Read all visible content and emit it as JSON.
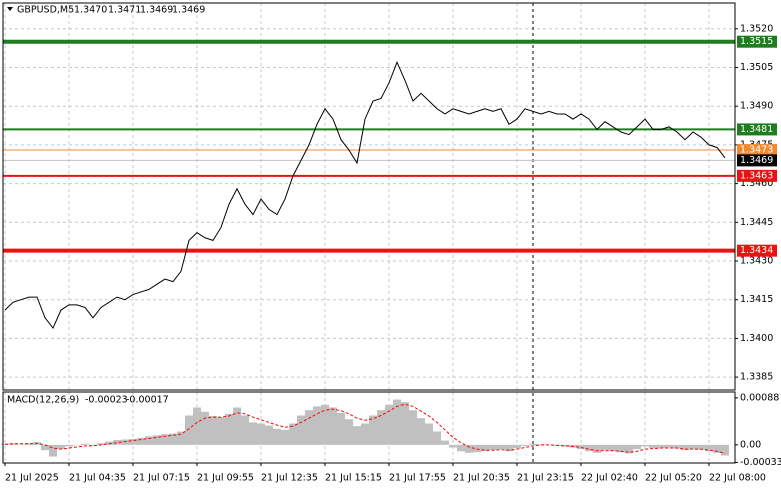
{
  "chart_data": {
    "type": "line",
    "title": "GBPUSD,M5",
    "ohlc": [
      "1.3470",
      "1.3471",
      "1.3469",
      "1.3469"
    ],
    "categories": [
      "21 Jul 2025",
      null,
      null,
      null,
      null,
      null,
      null,
      null,
      "21 Jul 04:35",
      null,
      null,
      null,
      null,
      null,
      null,
      null,
      "21 Jul 07:15",
      null,
      null,
      null,
      null,
      null,
      null,
      null,
      "21 Jul 09:55",
      null,
      null,
      null,
      null,
      null,
      null,
      null,
      "21 Jul 12:35",
      null,
      null,
      null,
      null,
      null,
      null,
      null,
      "21 Jul 15:15",
      null,
      null,
      null,
      null,
      null,
      null,
      null,
      "21 Jul 17:55",
      null,
      null,
      null,
      null,
      null,
      null,
      null,
      "21 Jul 20:35",
      null,
      null,
      null,
      null,
      null,
      null,
      null,
      "21 Jul 23:15",
      null,
      null,
      null,
      null,
      null,
      null,
      null,
      "22 Jul 02:40",
      null,
      null,
      null,
      null,
      null,
      null,
      null,
      "22 Jul 05:20",
      null,
      null,
      null,
      null,
      null,
      null,
      null,
      "22 Jul 08:00",
      null,
      null
    ],
    "values": [
      1.3411,
      1.3414,
      1.3415,
      1.3416,
      1.3416,
      1.3408,
      1.3404,
      1.3411,
      1.3413,
      1.3413,
      1.3412,
      1.3408,
      1.3412,
      1.3414,
      1.3416,
      1.3415,
      1.3417,
      1.3418,
      1.3419,
      1.3421,
      1.3423,
      1.3422,
      1.3426,
      1.3438,
      1.3441,
      1.3439,
      1.3438,
      1.3443,
      1.3452,
      1.3458,
      1.3452,
      1.3448,
      1.3454,
      1.345,
      1.3448,
      1.3454,
      1.3463,
      1.3469,
      1.3475,
      1.3483,
      1.3489,
      1.3485,
      1.3477,
      1.3473,
      1.3468,
      1.3485,
      1.3492,
      1.3493,
      1.3499,
      1.3507,
      1.35,
      1.3492,
      1.3495,
      1.3492,
      1.3489,
      1.3487,
      1.3489,
      1.3488,
      1.3487,
      1.3488,
      1.3489,
      1.3488,
      1.3489,
      1.3483,
      1.3485,
      1.3489,
      1.3488,
      1.3487,
      1.3488,
      1.3487,
      1.3487,
      1.3485,
      1.3487,
      1.3485,
      1.3481,
      1.3484,
      1.3482,
      1.348,
      1.3479,
      1.3482,
      1.3485,
      1.3481,
      1.3481,
      1.3482,
      1.348,
      1.3477,
      1.348,
      1.3478,
      1.3475,
      1.3474,
      1.347
    ],
    "color": "#000000",
    "ylim": [
      1.338,
      1.353
    ],
    "yticks": [
      {
        "value": 1.352,
        "label": "1.3520"
      },
      1.3505,
      {
        "value": 1.349,
        "label": "1.3490"
      },
      1.3475,
      {
        "value": 1.346,
        "label": "1.3460"
      },
      1.3445,
      {
        "value": 1.343,
        "label": "1.3430"
      },
      1.3415,
      {
        "value": 1.34,
        "label": "1.3400"
      },
      1.3385
    ],
    "grid": true,
    "levels": [
      {
        "value": 1.3515,
        "color": "#1e7d1e"
      },
      {
        "value": 1.3481,
        "color": "#1e7d1e"
      },
      {
        "value": 1.3473,
        "color": "#f08a30"
      },
      {
        "value": 1.3469,
        "color": "#000000"
      },
      {
        "value": 1.3463,
        "color": "#ee1111"
      },
      {
        "value": 1.3434,
        "color": "#ee1111"
      }
    ],
    "macd": {
      "title": "MACD(12,26,9)",
      "readout": [
        -0.00023,
        -0.00017
      ],
      "histogram": [
        2e-05,
        3e-05,
        1e-05,
        3e-05,
        5e-05,
        -0.0001,
        -0.00022,
        -8e-05,
        -3e-05,
        0,
        2e-05,
        -2e-05,
        3e-05,
        6e-05,
        9e-05,
        0.0001,
        0.00011,
        0.00013,
        0.00016,
        0.00018,
        0.0002,
        0.00021,
        0.00025,
        0.00055,
        0.0007,
        0.00062,
        0.00054,
        0.00052,
        0.00058,
        0.0007,
        0.00055,
        0.00042,
        0.0004,
        0.00036,
        0.0003,
        0.00028,
        0.0004,
        0.00055,
        0.00065,
        0.00072,
        0.00075,
        0.0007,
        0.0006,
        0.00048,
        0.00035,
        0.0004,
        0.00055,
        0.00065,
        0.00075,
        0.00085,
        0.0008,
        0.00065,
        0.0005,
        0.0004,
        0.00025,
        8e-05,
        -5e-05,
        -0.00012,
        -0.00015,
        -0.00014,
        -0.00012,
        -0.0001,
        -8e-05,
        -0.00012,
        -6e-05,
        -2e-05,
        2e-05,
        1e-05,
        0,
        -2e-05,
        -3e-05,
        -5e-05,
        -8e-05,
        -0.00012,
        -0.00015,
        -0.0001,
        -0.00012,
        -0.00014,
        -0.00016,
        -8e-05,
        -3e-05,
        -6e-05,
        -6e-05,
        -5e-05,
        -7e-05,
        -0.0001,
        -8e-05,
        -9e-05,
        -0.00012,
        -0.00015,
        -0.0002
      ],
      "signal": [
        1e-05,
        2e-05,
        2e-05,
        2e-05,
        3e-05,
        0,
        -6e-05,
        -8e-05,
        -6e-05,
        -4e-05,
        -2e-05,
        -2e-05,
        0,
        2e-05,
        4e-05,
        6e-05,
        8e-05,
        0.0001,
        0.00012,
        0.00014,
        0.00016,
        0.00018,
        0.0002,
        0.0003,
        0.00042,
        0.0005,
        0.00052,
        0.00052,
        0.00054,
        0.0006,
        0.00058,
        0.00052,
        0.00047,
        0.00042,
        0.00037,
        0.00033,
        0.00035,
        0.00042,
        0.0005,
        0.00058,
        0.00065,
        0.00067,
        0.00064,
        0.00058,
        0.0005,
        0.00046,
        0.00049,
        0.00055,
        0.00063,
        0.00072,
        0.00076,
        0.00072,
        0.00063,
        0.00054,
        0.00042,
        0.00028,
        0.00014,
        4e-05,
        -4e-05,
        -8e-05,
        -0.0001,
        -0.0001,
        -9e-05,
        -0.0001,
        -8e-05,
        -5e-05,
        -2e-05,
        0,
        0,
        -1e-05,
        -2e-05,
        -3e-05,
        -5e-05,
        -8e-05,
        -0.00011,
        -0.00011,
        -0.00011,
        -0.00012,
        -0.00014,
        -0.00012,
        -8e-05,
        -7e-05,
        -6e-05,
        -6e-05,
        -6e-05,
        -8e-05,
        -8e-05,
        -8e-05,
        -0.0001,
        -0.00012,
        -0.00016
      ],
      "hist_color": "#c0c0c0",
      "signal_color": "#ff0000",
      "ylim": [
        -0.00034,
        0.00099
      ],
      "yticks": [
        0.00088,
        {
          "value": 0,
          "label": "0.00"
        },
        -0.00033
      ]
    }
  }
}
